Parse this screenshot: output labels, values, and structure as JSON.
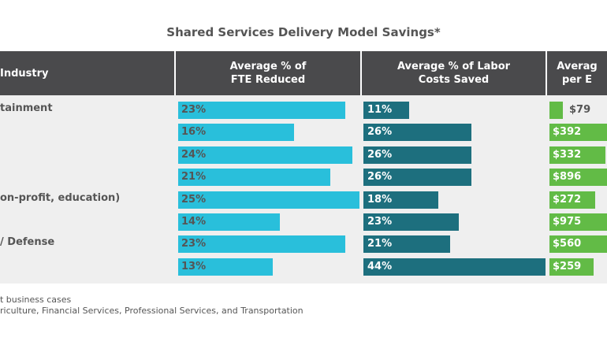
{
  "chart_data": {
    "type": "table",
    "title": "Shared Services Delivery Model Savings*",
    "columns": [
      "Industry",
      "Average % of\nFTE Reduced",
      "Average % of Labor\nCosts Saved",
      "Averag\nper E"
    ],
    "rows": [
      {
        "industry": "tainment",
        "fte": 23,
        "labor": 11,
        "per": 79
      },
      {
        "industry": "",
        "fte": 16,
        "labor": 26,
        "per": 392
      },
      {
        "industry": "",
        "fte": 24,
        "labor": 26,
        "per": 332
      },
      {
        "industry": "",
        "fte": 21,
        "labor": 26,
        "per": 896
      },
      {
        "industry": "on-profit, education)",
        "fte": 25,
        "labor": 18,
        "per": 272
      },
      {
        "industry": "",
        "fte": 14,
        "labor": 23,
        "per": 975
      },
      {
        "industry": "/ Defense",
        "fte": 23,
        "labor": 21,
        "per": 560
      },
      {
        "industry": "",
        "fte": 13,
        "labor": 44,
        "per": 259
      }
    ],
    "footnotes": [
      "t business cases",
      "riculture, Financial Services, Professional Services, and Transportation"
    ],
    "colors": {
      "fte": "#29bfdb",
      "labor": "#1d6f7e",
      "per": "#62bb46",
      "header": "#4a4a4c"
    }
  }
}
